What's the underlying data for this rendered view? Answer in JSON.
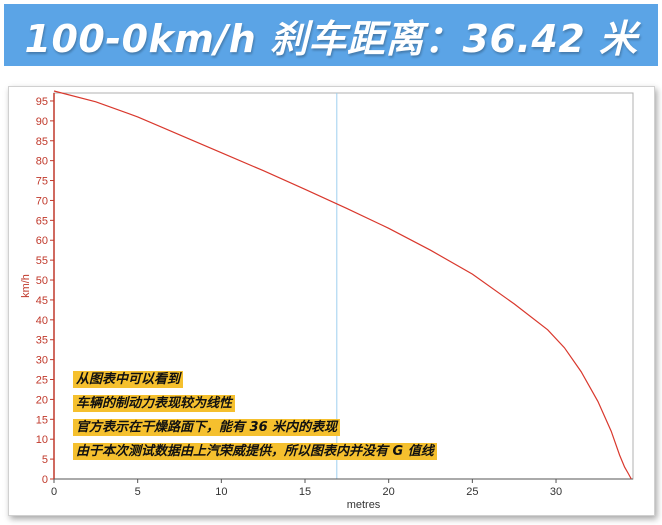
{
  "banner": {
    "title": "100-0km/h 刹车距离：36.42 米",
    "bg_color": "#5ba4e6"
  },
  "notes": [
    "从图表中可以看到",
    "车辆的制动力表现较为线性",
    "官方表示在干燥路面下，能有 36 米内的表现",
    "由于本次测试数据由上汽荣威提供，所以图表内并没有 G 值线"
  ],
  "chart_data": {
    "type": "line",
    "xlabel": "metres",
    "ylabel": "km/h",
    "xlim": [
      0,
      34.6
    ],
    "ylim": [
      0,
      97
    ],
    "xticks": [
      0,
      5,
      10,
      15,
      20,
      25,
      30
    ],
    "yticks": [
      0,
      5,
      10,
      15,
      20,
      25,
      30,
      35,
      40,
      45,
      50,
      55,
      60,
      65,
      70,
      75,
      80,
      85,
      90,
      95
    ],
    "grid": false,
    "cursor_x": 16.9,
    "line_color": "#d9382d",
    "axis_color": "#c0392b",
    "series": [
      {
        "x": [
          0,
          2.5,
          5,
          7.5,
          10,
          12.5,
          15,
          17.5,
          20,
          22.5,
          25,
          27.5,
          29.5,
          30.5,
          31.5,
          32.5,
          33.3,
          33.8,
          34.1,
          34.3,
          34.5
        ],
        "values": [
          97.5,
          94.8,
          91,
          86.5,
          82,
          77.5,
          72.8,
          68,
          63,
          57.5,
          51.5,
          44,
          37.5,
          33,
          27,
          19.5,
          12,
          6,
          3,
          1.5,
          0
        ]
      }
    ]
  }
}
